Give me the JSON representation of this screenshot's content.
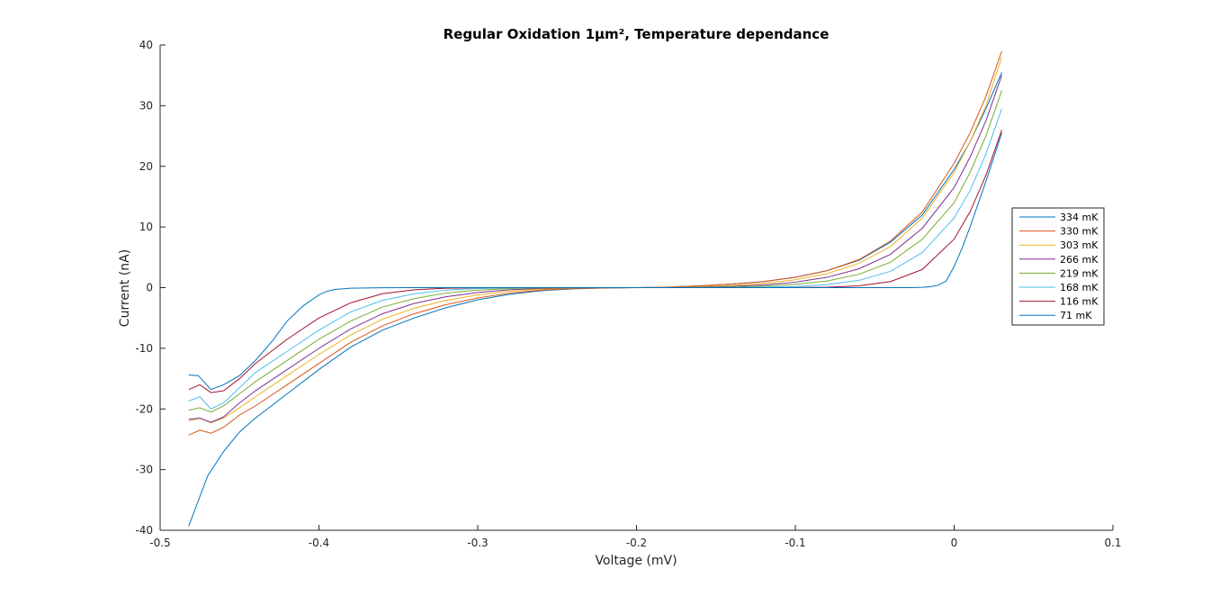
{
  "chart_data": {
    "type": "line",
    "title": "Regular Oxidation 1μm², Temperature dependance",
    "xlabel": "Voltage (mV)",
    "ylabel": "Current (nA)",
    "xlim": [
      -0.5,
      0.1
    ],
    "ylim": [
      -40,
      40
    ],
    "xticks": [
      -0.5,
      -0.4,
      -0.3,
      -0.2,
      -0.1,
      0,
      0.1
    ],
    "xtick_labels": [
      "-0.5",
      "-0.4",
      "-0.3",
      "-0.2",
      "-0.1",
      "0",
      "0.1"
    ],
    "yticks": [
      -40,
      -30,
      -20,
      -10,
      0,
      10,
      20,
      30,
      40
    ],
    "ytick_labels": [
      "-40",
      "-30",
      "-20",
      "-10",
      "0",
      "10",
      "20",
      "30",
      "40"
    ],
    "grid": false,
    "legend_position": "right",
    "series": [
      {
        "name": "334 mK",
        "color": "#0072BD",
        "x": [
          -0.482,
          -0.47,
          -0.46,
          -0.45,
          -0.44,
          -0.42,
          -0.4,
          -0.38,
          -0.36,
          -0.34,
          -0.32,
          -0.3,
          -0.28,
          -0.26,
          -0.24,
          -0.22,
          -0.2,
          -0.18,
          -0.16,
          -0.14,
          -0.12,
          -0.1,
          -0.08,
          -0.06,
          -0.04,
          -0.02,
          0.0,
          0.01,
          0.02,
          0.03
        ],
        "y": [
          -39.3,
          -31.0,
          -27.0,
          -23.8,
          -21.5,
          -17.5,
          -13.5,
          -9.8,
          -7.0,
          -5.0,
          -3.3,
          -2.0,
          -1.1,
          -0.5,
          -0.2,
          -0.05,
          0.0,
          0.1,
          0.3,
          0.6,
          1.0,
          1.7,
          2.8,
          4.5,
          7.5,
          12.0,
          19.5,
          24.0,
          29.5,
          35.5
        ]
      },
      {
        "name": "330 mK",
        "color": "#D95319",
        "x": [
          -0.482,
          -0.475,
          -0.468,
          -0.46,
          -0.45,
          -0.44,
          -0.42,
          -0.4,
          -0.38,
          -0.36,
          -0.34,
          -0.32,
          -0.3,
          -0.28,
          -0.26,
          -0.24,
          -0.22,
          -0.2,
          -0.18,
          -0.16,
          -0.14,
          -0.12,
          -0.1,
          -0.08,
          -0.06,
          -0.04,
          -0.02,
          0.0,
          0.01,
          0.02,
          0.03
        ],
        "y": [
          -24.3,
          -23.5,
          -24.0,
          -23.0,
          -21.0,
          -19.5,
          -16.0,
          -12.5,
          -9.0,
          -6.3,
          -4.3,
          -2.8,
          -1.7,
          -0.9,
          -0.4,
          -0.15,
          -0.05,
          0.0,
          0.1,
          0.3,
          0.6,
          1.0,
          1.7,
          2.8,
          4.6,
          7.7,
          12.5,
          20.5,
          25.5,
          31.5,
          39.0
        ]
      },
      {
        "name": "303 mK",
        "color": "#EDB120",
        "x": [
          -0.482,
          -0.475,
          -0.468,
          -0.46,
          -0.45,
          -0.44,
          -0.42,
          -0.4,
          -0.38,
          -0.36,
          -0.34,
          -0.32,
          -0.3,
          -0.28,
          -0.26,
          -0.24,
          -0.22,
          -0.2,
          -0.18,
          -0.16,
          -0.14,
          -0.12,
          -0.1,
          -0.08,
          -0.06,
          -0.04,
          -0.02,
          0.0,
          0.01,
          0.02,
          0.03
        ],
        "y": [
          -22.0,
          -21.5,
          -22.3,
          -21.5,
          -19.8,
          -18.0,
          -14.5,
          -11.0,
          -7.8,
          -5.2,
          -3.4,
          -2.1,
          -1.2,
          -0.6,
          -0.25,
          -0.08,
          0.0,
          0.0,
          0.05,
          0.15,
          0.35,
          0.7,
          1.3,
          2.3,
          4.0,
          6.8,
          11.5,
          19.0,
          24.0,
          30.0,
          38.0
        ]
      },
      {
        "name": "266 mK",
        "color": "#7E2F8E",
        "x": [
          -0.482,
          -0.475,
          -0.468,
          -0.46,
          -0.45,
          -0.44,
          -0.42,
          -0.4,
          -0.38,
          -0.36,
          -0.34,
          -0.32,
          -0.3,
          -0.28,
          -0.26,
          -0.24,
          -0.22,
          -0.2,
          -0.18,
          -0.16,
          -0.14,
          -0.12,
          -0.1,
          -0.08,
          -0.06,
          -0.04,
          -0.02,
          0.0,
          0.01,
          0.02,
          0.03
        ],
        "y": [
          -21.7,
          -21.5,
          -22.2,
          -21.3,
          -19.0,
          -17.0,
          -13.5,
          -10.0,
          -6.8,
          -4.3,
          -2.6,
          -1.5,
          -0.8,
          -0.35,
          -0.12,
          -0.03,
          0.0,
          0.0,
          0.02,
          0.08,
          0.2,
          0.45,
          0.9,
          1.7,
          3.1,
          5.5,
          9.8,
          16.5,
          21.5,
          27.5,
          35.0
        ]
      },
      {
        "name": "219 mK",
        "color": "#77AC30",
        "x": [
          -0.482,
          -0.475,
          -0.468,
          -0.46,
          -0.45,
          -0.44,
          -0.42,
          -0.4,
          -0.38,
          -0.36,
          -0.34,
          -0.32,
          -0.3,
          -0.28,
          -0.26,
          -0.24,
          -0.22,
          -0.2,
          -0.18,
          -0.16,
          -0.14,
          -0.12,
          -0.1,
          -0.08,
          -0.06,
          -0.04,
          -0.02,
          0.0,
          0.01,
          0.02,
          0.03
        ],
        "y": [
          -20.2,
          -19.8,
          -20.5,
          -19.5,
          -17.5,
          -15.5,
          -12.0,
          -8.5,
          -5.5,
          -3.2,
          -1.8,
          -0.9,
          -0.4,
          -0.15,
          -0.04,
          0.0,
          0.0,
          0.0,
          0.0,
          0.03,
          0.1,
          0.25,
          0.55,
          1.1,
          2.2,
          4.2,
          8.0,
          14.0,
          19.0,
          25.0,
          32.5
        ]
      },
      {
        "name": "168 mK",
        "color": "#4DBEEE",
        "x": [
          -0.482,
          -0.475,
          -0.468,
          -0.46,
          -0.45,
          -0.44,
          -0.42,
          -0.4,
          -0.38,
          -0.36,
          -0.34,
          -0.32,
          -0.3,
          -0.28,
          -0.26,
          -0.24,
          -0.22,
          -0.2,
          -0.18,
          -0.16,
          -0.14,
          -0.12,
          -0.1,
          -0.08,
          -0.06,
          -0.04,
          -0.02,
          0.0,
          0.01,
          0.02,
          0.03
        ],
        "y": [
          -18.7,
          -18.0,
          -20.0,
          -19.0,
          -16.5,
          -14.0,
          -10.5,
          -7.0,
          -4.0,
          -2.1,
          -1.0,
          -0.4,
          -0.15,
          -0.04,
          0.0,
          0.0,
          0.0,
          0.0,
          0.0,
          0.0,
          0.02,
          0.08,
          0.2,
          0.5,
          1.2,
          2.7,
          5.8,
          11.5,
          16.0,
          22.0,
          29.5
        ]
      },
      {
        "name": "116 mK",
        "color": "#A2142F",
        "x": [
          -0.482,
          -0.475,
          -0.468,
          -0.46,
          -0.45,
          -0.44,
          -0.42,
          -0.4,
          -0.38,
          -0.36,
          -0.34,
          -0.32,
          -0.3,
          -0.28,
          -0.26,
          -0.24,
          -0.22,
          -0.2,
          -0.18,
          -0.16,
          -0.14,
          -0.12,
          -0.1,
          -0.08,
          -0.06,
          -0.04,
          -0.02,
          0.0,
          0.01,
          0.02,
          0.03
        ],
        "y": [
          -16.8,
          -16.0,
          -17.3,
          -17.0,
          -15.0,
          -12.5,
          -8.5,
          -5.0,
          -2.5,
          -1.0,
          -0.35,
          -0.1,
          -0.02,
          0.0,
          0.0,
          0.0,
          0.0,
          0.0,
          0.0,
          0.0,
          0.0,
          0.0,
          0.02,
          0.08,
          0.3,
          1.0,
          3.0,
          8.0,
          12.5,
          18.5,
          26.0
        ]
      },
      {
        "name": "71 mK",
        "color": "#0072BD",
        "x": [
          -0.482,
          -0.476,
          -0.468,
          -0.46,
          -0.45,
          -0.44,
          -0.43,
          -0.42,
          -0.41,
          -0.4,
          -0.395,
          -0.39,
          -0.38,
          -0.36,
          -0.34,
          -0.32,
          -0.3,
          -0.25,
          -0.2,
          -0.15,
          -0.1,
          -0.05,
          -0.03,
          -0.02,
          -0.015,
          -0.01,
          -0.005,
          0.0,
          0.005,
          0.01,
          0.02,
          0.03
        ],
        "y": [
          -14.4,
          -14.5,
          -16.8,
          -16.0,
          -14.5,
          -12.0,
          -9.0,
          -5.5,
          -3.0,
          -1.2,
          -0.6,
          -0.3,
          -0.1,
          -0.02,
          0.0,
          0.0,
          0.0,
          0.0,
          0.0,
          0.0,
          0.0,
          0.0,
          0.0,
          0.05,
          0.15,
          0.4,
          1.1,
          3.5,
          6.5,
          10.0,
          17.5,
          25.5
        ]
      }
    ]
  }
}
